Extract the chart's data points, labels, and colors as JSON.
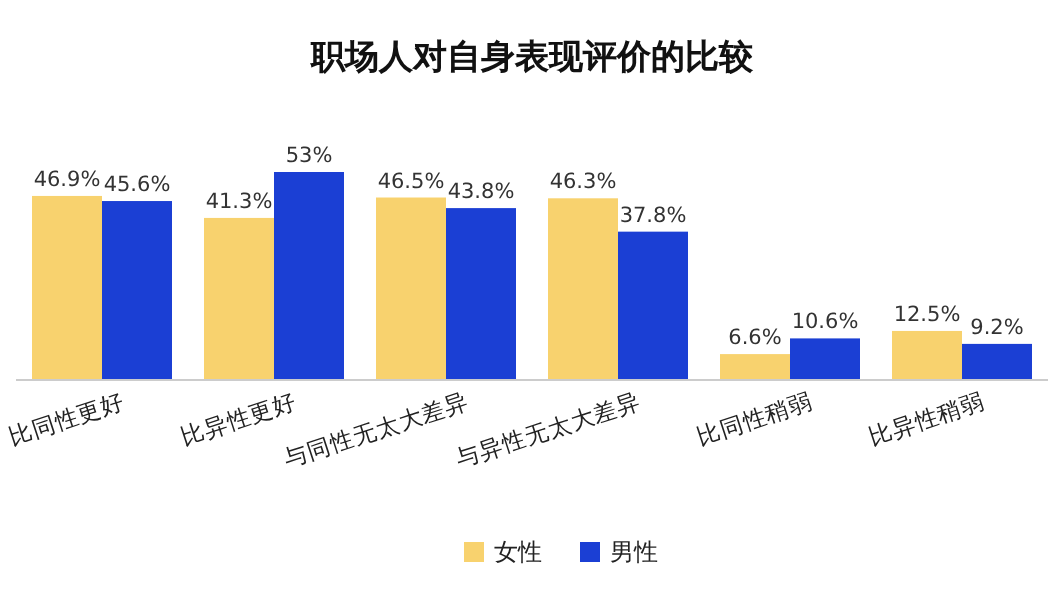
{
  "chart_data": {
    "type": "bar",
    "title": "职场人对自身表现评价的比较",
    "categories": [
      "比同性更好",
      "比异性更好",
      "与同性无太大差异",
      "与异性无太大差异",
      "比同性稍弱",
      "比异性稍弱"
    ],
    "series": [
      {
        "name": "女性",
        "color": "#f8d26e",
        "values": [
          46.9,
          41.3,
          46.5,
          46.3,
          6.6,
          12.5
        ],
        "value_labels": [
          "46.9%",
          "41.3%",
          "46.5%",
          "46.3%",
          "6.6%",
          "12.5%"
        ]
      },
      {
        "name": "男性",
        "color": "#1b3fd4",
        "values": [
          45.6,
          53,
          43.8,
          37.8,
          10.6,
          9.2
        ],
        "value_labels": [
          "45.6%",
          "53%",
          "43.8%",
          "37.8%",
          "10.6%",
          "9.2%"
        ]
      }
    ],
    "legend": "bottom"
  }
}
